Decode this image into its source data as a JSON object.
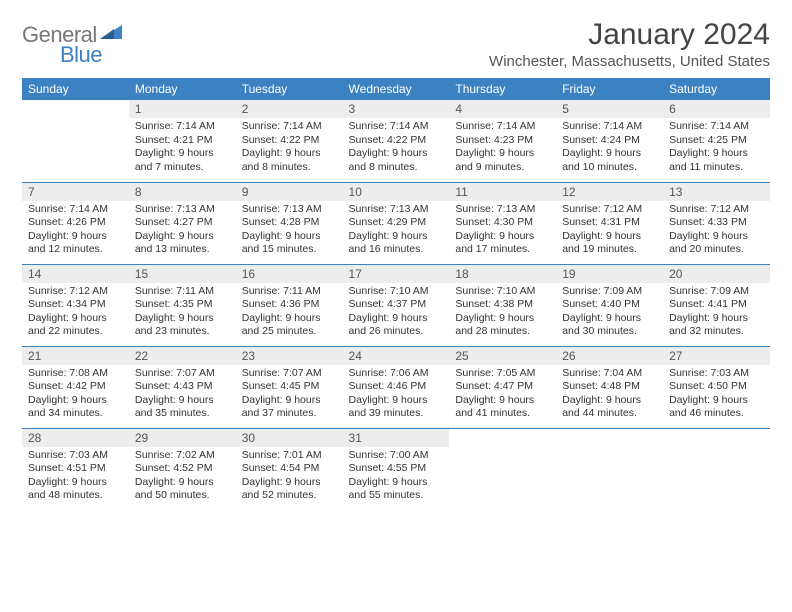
{
  "brand": {
    "word1": "General",
    "word2": "Blue",
    "tri_color": "#3c81c2"
  },
  "header": {
    "title": "January 2024",
    "location": "Winchester, Massachusetts, United States"
  },
  "style": {
    "header_bg": "#3c81c2",
    "header_fg": "#ffffff",
    "daynum_bg": "#ededed",
    "rule_color": "#3c81c2",
    "page_bg": "#ffffff",
    "text_color": "#333333"
  },
  "weekdays": [
    "Sunday",
    "Monday",
    "Tuesday",
    "Wednesday",
    "Thursday",
    "Friday",
    "Saturday"
  ],
  "weeks": [
    [
      {
        "empty": true
      },
      {
        "n": "1",
        "sunrise": "Sunrise: 7:14 AM",
        "sunset": "Sunset: 4:21 PM",
        "day1": "Daylight: 9 hours",
        "day2": "and 7 minutes."
      },
      {
        "n": "2",
        "sunrise": "Sunrise: 7:14 AM",
        "sunset": "Sunset: 4:22 PM",
        "day1": "Daylight: 9 hours",
        "day2": "and 8 minutes."
      },
      {
        "n": "3",
        "sunrise": "Sunrise: 7:14 AM",
        "sunset": "Sunset: 4:22 PM",
        "day1": "Daylight: 9 hours",
        "day2": "and 8 minutes."
      },
      {
        "n": "4",
        "sunrise": "Sunrise: 7:14 AM",
        "sunset": "Sunset: 4:23 PM",
        "day1": "Daylight: 9 hours",
        "day2": "and 9 minutes."
      },
      {
        "n": "5",
        "sunrise": "Sunrise: 7:14 AM",
        "sunset": "Sunset: 4:24 PM",
        "day1": "Daylight: 9 hours",
        "day2": "and 10 minutes."
      },
      {
        "n": "6",
        "sunrise": "Sunrise: 7:14 AM",
        "sunset": "Sunset: 4:25 PM",
        "day1": "Daylight: 9 hours",
        "day2": "and 11 minutes."
      }
    ],
    [
      {
        "n": "7",
        "sunrise": "Sunrise: 7:14 AM",
        "sunset": "Sunset: 4:26 PM",
        "day1": "Daylight: 9 hours",
        "day2": "and 12 minutes."
      },
      {
        "n": "8",
        "sunrise": "Sunrise: 7:13 AM",
        "sunset": "Sunset: 4:27 PM",
        "day1": "Daylight: 9 hours",
        "day2": "and 13 minutes."
      },
      {
        "n": "9",
        "sunrise": "Sunrise: 7:13 AM",
        "sunset": "Sunset: 4:28 PM",
        "day1": "Daylight: 9 hours",
        "day2": "and 15 minutes."
      },
      {
        "n": "10",
        "sunrise": "Sunrise: 7:13 AM",
        "sunset": "Sunset: 4:29 PM",
        "day1": "Daylight: 9 hours",
        "day2": "and 16 minutes."
      },
      {
        "n": "11",
        "sunrise": "Sunrise: 7:13 AM",
        "sunset": "Sunset: 4:30 PM",
        "day1": "Daylight: 9 hours",
        "day2": "and 17 minutes."
      },
      {
        "n": "12",
        "sunrise": "Sunrise: 7:12 AM",
        "sunset": "Sunset: 4:31 PM",
        "day1": "Daylight: 9 hours",
        "day2": "and 19 minutes."
      },
      {
        "n": "13",
        "sunrise": "Sunrise: 7:12 AM",
        "sunset": "Sunset: 4:33 PM",
        "day1": "Daylight: 9 hours",
        "day2": "and 20 minutes."
      }
    ],
    [
      {
        "n": "14",
        "sunrise": "Sunrise: 7:12 AM",
        "sunset": "Sunset: 4:34 PM",
        "day1": "Daylight: 9 hours",
        "day2": "and 22 minutes."
      },
      {
        "n": "15",
        "sunrise": "Sunrise: 7:11 AM",
        "sunset": "Sunset: 4:35 PM",
        "day1": "Daylight: 9 hours",
        "day2": "and 23 minutes."
      },
      {
        "n": "16",
        "sunrise": "Sunrise: 7:11 AM",
        "sunset": "Sunset: 4:36 PM",
        "day1": "Daylight: 9 hours",
        "day2": "and 25 minutes."
      },
      {
        "n": "17",
        "sunrise": "Sunrise: 7:10 AM",
        "sunset": "Sunset: 4:37 PM",
        "day1": "Daylight: 9 hours",
        "day2": "and 26 minutes."
      },
      {
        "n": "18",
        "sunrise": "Sunrise: 7:10 AM",
        "sunset": "Sunset: 4:38 PM",
        "day1": "Daylight: 9 hours",
        "day2": "and 28 minutes."
      },
      {
        "n": "19",
        "sunrise": "Sunrise: 7:09 AM",
        "sunset": "Sunset: 4:40 PM",
        "day1": "Daylight: 9 hours",
        "day2": "and 30 minutes."
      },
      {
        "n": "20",
        "sunrise": "Sunrise: 7:09 AM",
        "sunset": "Sunset: 4:41 PM",
        "day1": "Daylight: 9 hours",
        "day2": "and 32 minutes."
      }
    ],
    [
      {
        "n": "21",
        "sunrise": "Sunrise: 7:08 AM",
        "sunset": "Sunset: 4:42 PM",
        "day1": "Daylight: 9 hours",
        "day2": "and 34 minutes."
      },
      {
        "n": "22",
        "sunrise": "Sunrise: 7:07 AM",
        "sunset": "Sunset: 4:43 PM",
        "day1": "Daylight: 9 hours",
        "day2": "and 35 minutes."
      },
      {
        "n": "23",
        "sunrise": "Sunrise: 7:07 AM",
        "sunset": "Sunset: 4:45 PM",
        "day1": "Daylight: 9 hours",
        "day2": "and 37 minutes."
      },
      {
        "n": "24",
        "sunrise": "Sunrise: 7:06 AM",
        "sunset": "Sunset: 4:46 PM",
        "day1": "Daylight: 9 hours",
        "day2": "and 39 minutes."
      },
      {
        "n": "25",
        "sunrise": "Sunrise: 7:05 AM",
        "sunset": "Sunset: 4:47 PM",
        "day1": "Daylight: 9 hours",
        "day2": "and 41 minutes."
      },
      {
        "n": "26",
        "sunrise": "Sunrise: 7:04 AM",
        "sunset": "Sunset: 4:48 PM",
        "day1": "Daylight: 9 hours",
        "day2": "and 44 minutes."
      },
      {
        "n": "27",
        "sunrise": "Sunrise: 7:03 AM",
        "sunset": "Sunset: 4:50 PM",
        "day1": "Daylight: 9 hours",
        "day2": "and 46 minutes."
      }
    ],
    [
      {
        "n": "28",
        "sunrise": "Sunrise: 7:03 AM",
        "sunset": "Sunset: 4:51 PM",
        "day1": "Daylight: 9 hours",
        "day2": "and 48 minutes."
      },
      {
        "n": "29",
        "sunrise": "Sunrise: 7:02 AM",
        "sunset": "Sunset: 4:52 PM",
        "day1": "Daylight: 9 hours",
        "day2": "and 50 minutes."
      },
      {
        "n": "30",
        "sunrise": "Sunrise: 7:01 AM",
        "sunset": "Sunset: 4:54 PM",
        "day1": "Daylight: 9 hours",
        "day2": "and 52 minutes."
      },
      {
        "n": "31",
        "sunrise": "Sunrise: 7:00 AM",
        "sunset": "Sunset: 4:55 PM",
        "day1": "Daylight: 9 hours",
        "day2": "and 55 minutes."
      },
      {
        "empty": true
      },
      {
        "empty": true
      },
      {
        "empty": true
      }
    ]
  ]
}
